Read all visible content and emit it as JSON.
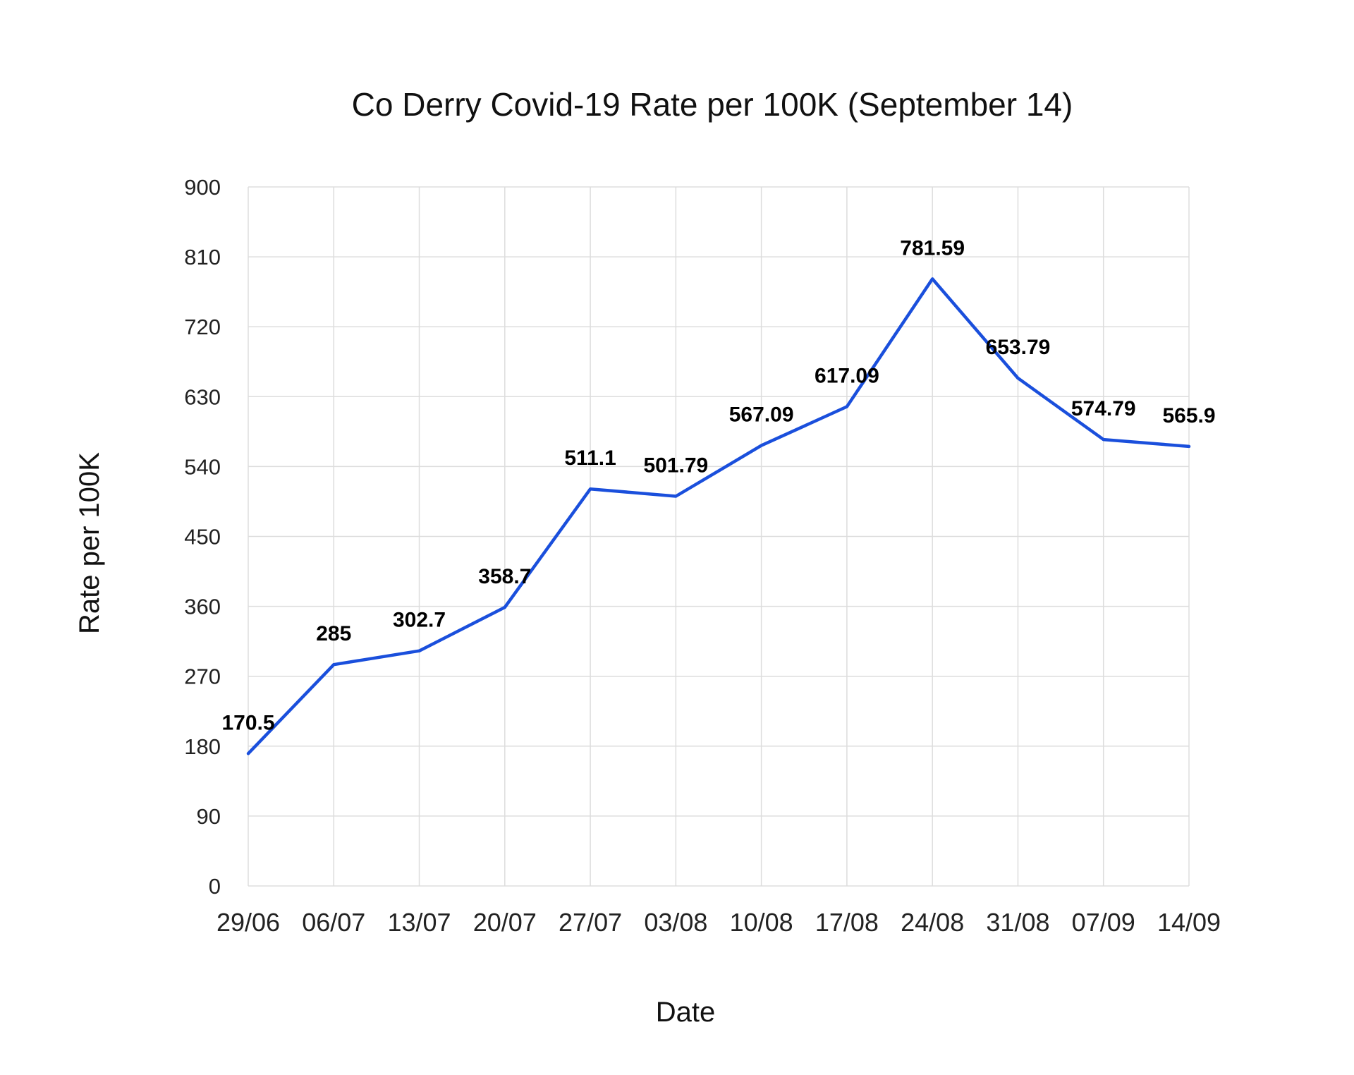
{
  "chart_data": {
    "type": "line",
    "title": "Co Derry Covid-19 Rate per 100K (September 14)",
    "xlabel": "Date",
    "ylabel": "Rate per 100K",
    "categories": [
      "29/06",
      "06/07",
      "13/07",
      "20/07",
      "27/07",
      "03/08",
      "10/08",
      "17/08",
      "24/08",
      "31/08",
      "07/09",
      "14/09"
    ],
    "series": [
      {
        "values": [
          170.5,
          285,
          302.7,
          358.7,
          511.1,
          501.79,
          567.09,
          617.09,
          781.59,
          653.79,
          574.79,
          565.9
        ],
        "labels": [
          "170.5",
          "285",
          "302.7",
          "358.7",
          "511.1",
          "501.79",
          "567.09",
          "617.09",
          "781.59",
          "653.79",
          "574.79",
          "565.9"
        ],
        "color": "#1a4fdc"
      }
    ],
    "ylim": [
      0,
      900
    ],
    "yticks": [
      "0",
      "90",
      "180",
      "270",
      "360",
      "450",
      "540",
      "630",
      "720",
      "810",
      "900"
    ],
    "grid": true,
    "legend": "none"
  }
}
